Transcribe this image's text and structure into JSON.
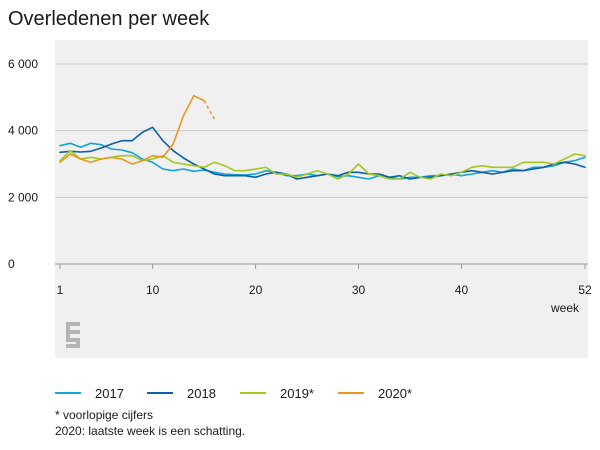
{
  "chart_data": {
    "type": "line",
    "title": "Overledenen per week",
    "xlabel": "week",
    "ylabel": "",
    "xlim": [
      1,
      52
    ],
    "ylim": [
      0,
      6000
    ],
    "yticks": [
      0,
      2000,
      4000,
      6000
    ],
    "ytick_labels": [
      "0",
      "2 000",
      "4 000",
      "6 000"
    ],
    "xticks": [
      1,
      10,
      20,
      30,
      40,
      52
    ],
    "xtick_labels": [
      "1",
      "10",
      "20",
      "30",
      "40",
      "52"
    ],
    "grid": "horizontal",
    "legend_placement": "bottom",
    "series": [
      {
        "name": "2017",
        "color": "#11a5d8",
        "x": [
          1,
          2,
          3,
          4,
          5,
          6,
          7,
          8,
          9,
          10,
          11,
          12,
          13,
          14,
          15,
          16,
          17,
          18,
          19,
          20,
          21,
          22,
          23,
          24,
          25,
          26,
          27,
          28,
          29,
          30,
          31,
          32,
          33,
          34,
          35,
          36,
          37,
          38,
          39,
          40,
          41,
          42,
          43,
          44,
          45,
          46,
          47,
          48,
          49,
          50,
          51,
          52
        ],
        "values": [
          3550,
          3620,
          3500,
          3620,
          3580,
          3450,
          3420,
          3340,
          3150,
          3050,
          2850,
          2800,
          2850,
          2780,
          2820,
          2750,
          2700,
          2680,
          2670,
          2700,
          2800,
          2750,
          2650,
          2650,
          2700,
          2650,
          2700,
          2620,
          2650,
          2600,
          2550,
          2650,
          2600,
          2550,
          2600,
          2600,
          2650,
          2650,
          2700,
          2650,
          2700,
          2750,
          2800,
          2750,
          2850,
          2800,
          2900,
          2900,
          2950,
          3050,
          3100,
          3200
        ]
      },
      {
        "name": "2018",
        "color": "#0d5fa6",
        "x": [
          1,
          2,
          3,
          4,
          5,
          6,
          7,
          8,
          9,
          10,
          11,
          12,
          13,
          14,
          15,
          16,
          17,
          18,
          19,
          20,
          21,
          22,
          23,
          24,
          25,
          26,
          27,
          28,
          29,
          30,
          31,
          32,
          33,
          34,
          35,
          36,
          37,
          38,
          39,
          40,
          41,
          42,
          43,
          44,
          45,
          46,
          47,
          48,
          49,
          50,
          51,
          52
        ],
        "values": [
          3350,
          3380,
          3360,
          3380,
          3480,
          3600,
          3700,
          3700,
          3950,
          4100,
          3700,
          3400,
          3180,
          3000,
          2850,
          2700,
          2650,
          2650,
          2650,
          2600,
          2700,
          2750,
          2700,
          2550,
          2600,
          2650,
          2700,
          2650,
          2750,
          2750,
          2700,
          2700,
          2600,
          2650,
          2550,
          2600,
          2600,
          2650,
          2700,
          2750,
          2800,
          2750,
          2700,
          2750,
          2800,
          2800,
          2850,
          2900,
          3000,
          3050,
          3000,
          2900
        ]
      },
      {
        "name": "2019*",
        "color": "#a3c81e",
        "x": [
          1,
          2,
          3,
          4,
          5,
          6,
          7,
          8,
          9,
          10,
          11,
          12,
          13,
          14,
          15,
          16,
          17,
          18,
          19,
          20,
          21,
          22,
          23,
          24,
          25,
          26,
          27,
          28,
          29,
          30,
          31,
          32,
          33,
          34,
          35,
          36,
          37,
          38,
          39,
          40,
          41,
          42,
          43,
          44,
          45,
          46,
          47,
          48,
          49,
          50,
          51,
          52
        ],
        "values": [
          3100,
          3400,
          3150,
          3200,
          3150,
          3200,
          3250,
          3250,
          3100,
          3150,
          3250,
          3050,
          3000,
          2950,
          2900,
          3050,
          2950,
          2800,
          2800,
          2850,
          2900,
          2700,
          2700,
          2600,
          2700,
          2800,
          2700,
          2550,
          2700,
          3000,
          2700,
          2650,
          2550,
          2550,
          2750,
          2600,
          2550,
          2700,
          2650,
          2750,
          2900,
          2950,
          2900,
          2900,
          2900,
          3050,
          3050,
          3050,
          3000,
          3150,
          3300,
          3250
        ]
      },
      {
        "name": "2020*",
        "color": "#e9971e",
        "x": [
          1,
          2,
          3,
          4,
          5,
          6,
          7,
          8,
          9,
          10,
          11,
          12,
          13,
          14,
          15
        ],
        "values": [
          3050,
          3300,
          3150,
          3050,
          3150,
          3200,
          3150,
          3000,
          3100,
          3250,
          3200,
          3600,
          4450,
          5050,
          4900
        ],
        "estimate_x": [
          15,
          16
        ],
        "estimate_values": [
          4900,
          4350
        ]
      }
    ]
  },
  "legend": [
    {
      "label": "2017",
      "color": "#11a5d8"
    },
    {
      "label": "2018",
      "color": "#0d5fa6"
    },
    {
      "label": "2019*",
      "color": "#a3c81e"
    },
    {
      "label": "2020*",
      "color": "#e9971e"
    }
  ],
  "notes": {
    "line1": "* voorlopige cijfers",
    "line2": "2020: laatste week is een schatting."
  },
  "logo": {
    "text": "cbs",
    "color": "#b5b5b5",
    "icon": "cbs-logo-icon"
  },
  "colors": {
    "plot_background": "#f0f0f0",
    "grid": "#cccccc",
    "axis": "#999999"
  }
}
